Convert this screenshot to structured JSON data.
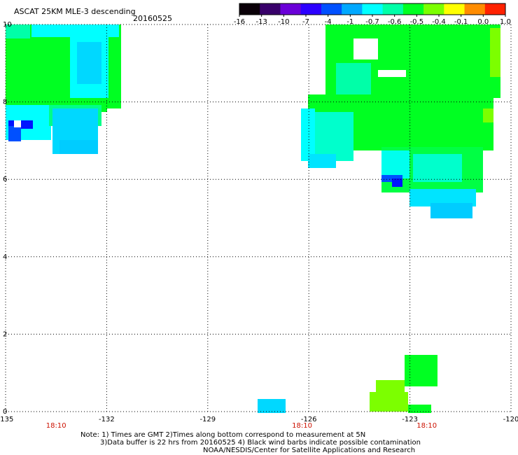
{
  "title": "ASCAT 25KM MLE-3 descending",
  "date": "20160525",
  "colorbar": {
    "labels": [
      "-16",
      "-13",
      "-10",
      "-7",
      "-4",
      "-1",
      "-0.7",
      "-0.6",
      "-0.5",
      "-0.4",
      "-0.1",
      "0.0",
      "1.0"
    ],
    "colors": [
      "#0a0008",
      "#38006a",
      "#6a00d8",
      "#2c00ff",
      "#0050ff",
      "#00a8ff",
      "#00ffff",
      "#00ffa8",
      "#00ff22",
      "#7cff00",
      "#ffff00",
      "#ff8c00",
      "#ff2200"
    ]
  },
  "map": {
    "lon_ticks": [
      "-135",
      "-132",
      "-129",
      "-126",
      "-123",
      "-120"
    ],
    "lat_ticks": [
      "10",
      "8",
      "6",
      "4",
      "2",
      "0"
    ],
    "time_labels": [
      "18:10",
      "18:10",
      "18:10"
    ],
    "lon_range": [
      -135,
      -120
    ],
    "lat_range": [
      0,
      10
    ]
  },
  "notes": {
    "line1": "Note: 1) Times are GMT 2)Times along bottom correspond to measurement at 5N",
    "line2": "3)Data buffer is 22 hrs from 20160525 4) Black wind barbs indicate possible contamination",
    "line3": "NOAA/NESDIS/Center for Satellite Applications and Research"
  }
}
